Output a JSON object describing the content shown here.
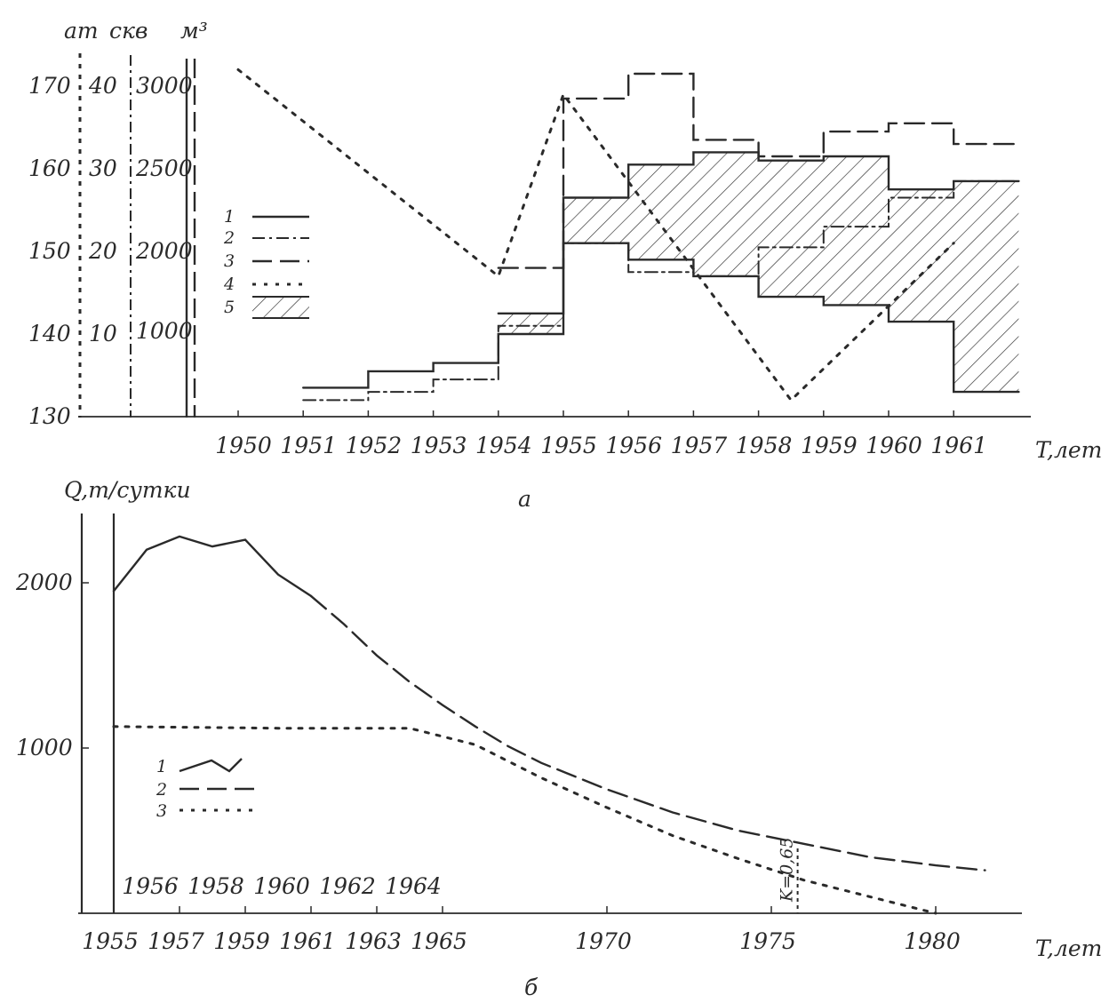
{
  "colors": {
    "ink": "#2a2a2a",
    "paper": "#ffffff"
  },
  "chart_data": [
    {
      "panel": "a",
      "type": "line",
      "caption": "а",
      "xlabel": "T,лет",
      "xlim": [
        1950,
        1962
      ],
      "x_ticks": [
        "1950",
        "1951",
        "1952",
        "1953",
        "1954",
        "1955",
        "1956",
        "1957",
        "1958",
        "1959",
        "1960",
        "1961"
      ],
      "axes": [
        {
          "unit": "ат",
          "ylim": [
            130,
            170
          ],
          "ticks": [
            "130",
            "140",
            "150",
            "160",
            "170"
          ]
        },
        {
          "unit": "скв",
          "ylim": [
            0,
            40
          ],
          "ticks": [
            "10",
            "20",
            "30",
            "40"
          ]
        },
        {
          "unit": "м³",
          "ylim": [
            0,
            3000
          ],
          "ticks": [
            "1000",
            "2000",
            "2500",
            "3000"
          ]
        }
      ],
      "legend": [
        "1",
        "2",
        "3",
        "4",
        "5"
      ],
      "grid": false,
      "series": [
        {
          "name": "1",
          "step": true,
          "x": [
            1951,
            1952,
            1953,
            1954,
            1955,
            1956,
            1957,
            1958,
            1959,
            1960,
            1961
          ],
          "values": [
            133.5,
            135.5,
            136.5,
            140,
            151,
            149,
            147,
            144.5,
            143.5,
            141.5,
            133
          ]
        },
        {
          "name": "2",
          "step": true,
          "x": [
            1951,
            1952,
            1953,
            1954,
            1955,
            1956,
            1957,
            1958,
            1959,
            1960,
            1961
          ],
          "values": [
            132,
            133,
            134.5,
            141,
            151,
            147.5,
            147,
            150.5,
            153,
            156.5,
            158.5
          ]
        },
        {
          "name": "3",
          "step": true,
          "x": [
            1954,
            1955,
            1956,
            1957,
            1958,
            1959,
            1960,
            1961
          ],
          "values": [
            148,
            168.5,
            171.5,
            163.5,
            161.5,
            164.5,
            165.5,
            163
          ]
        },
        {
          "name": "4",
          "x": [
            1950,
            1954,
            1955,
            1958.5,
            1961
          ],
          "values": [
            172,
            147,
            169,
            132,
            151
          ]
        },
        {
          "name": "5",
          "step": true,
          "x": [
            1954,
            1955,
            1956,
            1957,
            1958,
            1959,
            1960,
            1961
          ],
          "values": [
            142.5,
            156.5,
            160.5,
            162,
            161,
            161.5,
            157.5,
            158.5
          ]
        }
      ]
    },
    {
      "panel": "б",
      "type": "line",
      "caption": "б",
      "ylabel": "Q,т/сутки",
      "xlabel": "T,лет",
      "xlim": [
        1955,
        1982
      ],
      "ylim": [
        0,
        2400
      ],
      "y_ticks": [
        "1000",
        "2000"
      ],
      "x_ticks": [
        "1955",
        "1957",
        "1959",
        "1961",
        "1963",
        "1965",
        "1970",
        "1975",
        "1980"
      ],
      "x_ticks_upper": [
        "1956",
        "1958",
        "1960",
        "1962",
        "1964"
      ],
      "legend": [
        "1",
        "2",
        "3"
      ],
      "annotation": "K=0,65",
      "grid": false,
      "series": [
        {
          "name": "1",
          "x": [
            1955,
            1956,
            1957,
            1958,
            1959,
            1960,
            1961
          ],
          "values": [
            1950,
            2200,
            2280,
            2220,
            2260,
            2050,
            1920
          ]
        },
        {
          "name": "2",
          "x": [
            1961,
            1962,
            1963,
            1964,
            1965,
            1966,
            1967,
            1968,
            1970,
            1972,
            1974,
            1976,
            1978,
            1980,
            1981.5
          ],
          "values": [
            1920,
            1750,
            1560,
            1400,
            1260,
            1130,
            1010,
            910,
            750,
            610,
            500,
            420,
            340,
            290,
            260
          ]
        },
        {
          "name": "3",
          "x": [
            1955,
            1960,
            1964,
            1966,
            1968,
            1970,
            1972,
            1974,
            1976,
            1978,
            1980
          ],
          "values": [
            1130,
            1120,
            1120,
            1020,
            820,
            640,
            470,
            330,
            200,
            100,
            0
          ]
        }
      ]
    }
  ]
}
